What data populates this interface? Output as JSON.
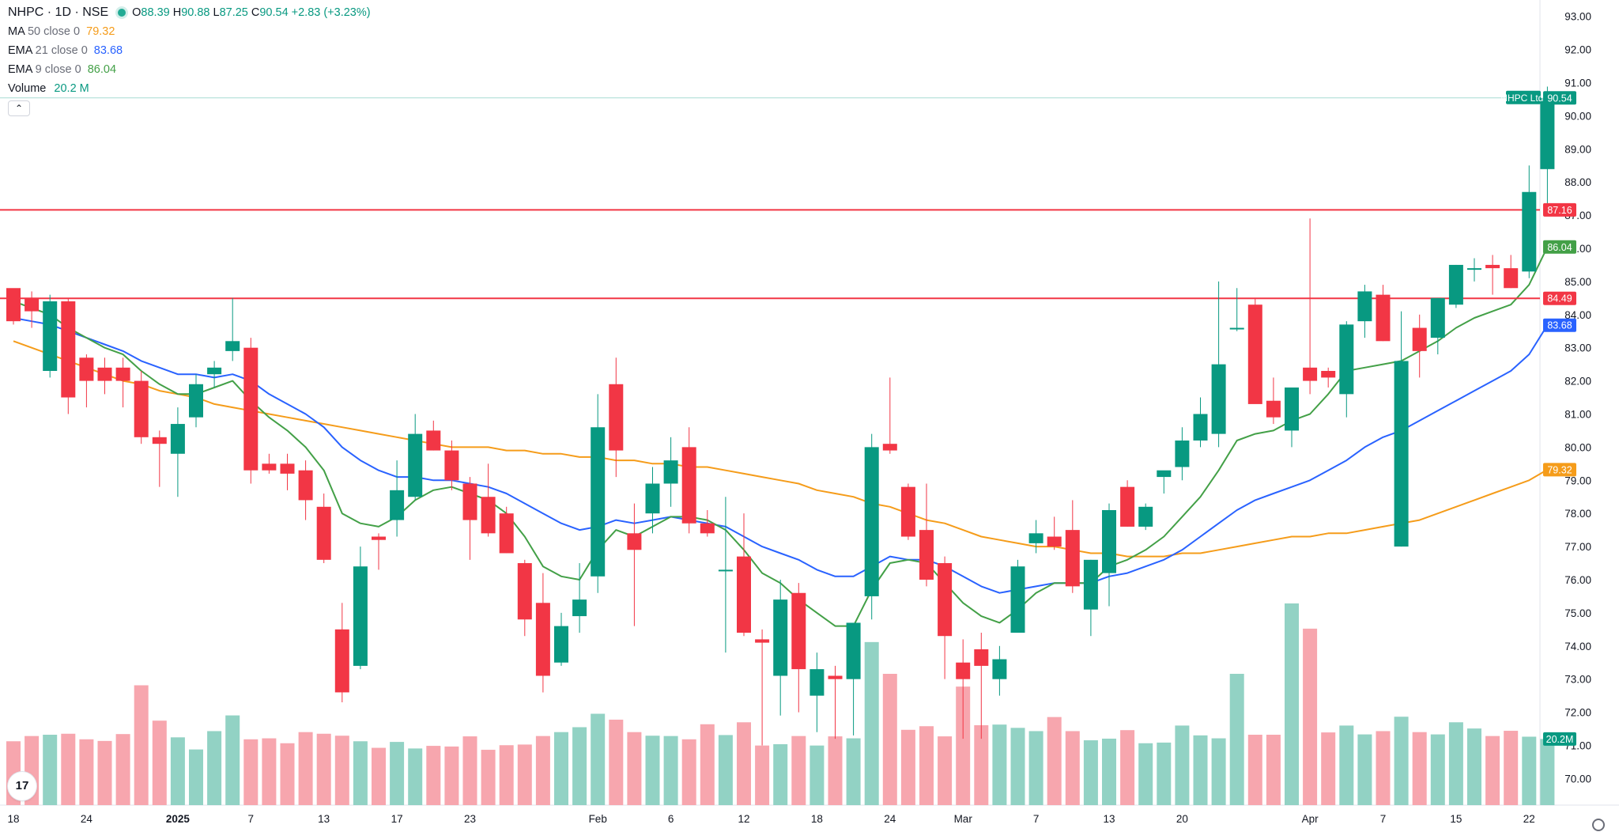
{
  "header": {
    "symbol": "NHPC · 1D · NSE",
    "open_label": "O",
    "open": "88.39",
    "high_label": "H",
    "high": "90.88",
    "low_label": "L",
    "low": "87.25",
    "close_label": "C",
    "close": "90.54",
    "change": "+2.83 (+3.23%)"
  },
  "indicators": [
    {
      "name": "MA",
      "params": "50 close 0",
      "value": "79.32",
      "color": "#f59c1a"
    },
    {
      "name": "EMA",
      "params": "21 close 0",
      "value": "83.68",
      "color": "#2962ff"
    },
    {
      "name": "EMA",
      "params": "9 close 0",
      "value": "86.04",
      "color": "#43a047"
    },
    {
      "name": "Volume",
      "params": "",
      "value": "20.2 M",
      "color": "#089981"
    }
  ],
  "logo_text": "17",
  "chart_data": {
    "type": "candlestick",
    "symbol_label": "NHPC Ltd.",
    "last_price": "90.54",
    "ylim": [
      69.3,
      93.2
    ],
    "y_ticks": [
      "70.00",
      "71.00",
      "72.00",
      "73.00",
      "74.00",
      "75.00",
      "76.00",
      "77.00",
      "78.00",
      "79.00",
      "80.00",
      "81.00",
      "82.00",
      "83.00",
      "84.00",
      "85.00",
      "86.00",
      "87.00",
      "88.00",
      "89.00",
      "90.00",
      "91.00",
      "92.00",
      "93.00"
    ],
    "x_ticks": [
      {
        "label": "18",
        "i": 0
      },
      {
        "label": "24",
        "i": 4
      },
      {
        "label": "2025",
        "i": 9
      },
      {
        "label": "7",
        "i": 13
      },
      {
        "label": "13",
        "i": 17
      },
      {
        "label": "17",
        "i": 21
      },
      {
        "label": "23",
        "i": 25
      },
      {
        "label": "Feb",
        "i": 32
      },
      {
        "label": "6",
        "i": 36
      },
      {
        "label": "12",
        "i": 40
      },
      {
        "label": "18",
        "i": 44
      },
      {
        "label": "24",
        "i": 48
      },
      {
        "label": "Mar",
        "i": 52
      },
      {
        "label": "7",
        "i": 56
      },
      {
        "label": "13",
        "i": 60
      },
      {
        "label": "20",
        "i": 64
      },
      {
        "label": "Apr",
        "i": 71
      },
      {
        "label": "7",
        "i": 75
      },
      {
        "label": "15",
        "i": 79
      },
      {
        "label": "22",
        "i": 83
      }
    ],
    "horizontal_lines": [
      {
        "value": 87.16,
        "label": "87.16",
        "color": "#f23645"
      },
      {
        "value": 84.49,
        "label": "84.49",
        "color": "#f23645"
      }
    ],
    "price_labels": [
      {
        "value": 86.04,
        "label": "86.04",
        "color": "#43a047"
      },
      {
        "value": 83.68,
        "label": "83.68",
        "color": "#2962ff"
      },
      {
        "value": 79.32,
        "label": "79.32",
        "color": "#f59c1a"
      }
    ],
    "volume_label": "20.2M",
    "colors": {
      "up": "#089981",
      "down": "#f23645",
      "vol_up": "#92d2c4",
      "vol_down": "#f7a6ae",
      "ma50": "#f59c1a",
      "ema21": "#2962ff",
      "ema9": "#43a047"
    },
    "candles": [
      [
        84.8,
        84.7,
        83.7,
        83.8
      ],
      [
        84.5,
        84.7,
        83.6,
        84.1
      ],
      [
        82.3,
        84.6,
        82.1,
        84.4
      ],
      [
        84.4,
        84.5,
        81.0,
        81.5
      ],
      [
        82.7,
        82.8,
        81.2,
        82.0
      ],
      [
        82.4,
        82.7,
        81.6,
        82.0
      ],
      [
        82.4,
        82.7,
        81.2,
        82.0
      ],
      [
        82.0,
        82.3,
        80.1,
        80.3
      ],
      [
        80.3,
        80.5,
        78.8,
        80.1
      ],
      [
        79.8,
        81.2,
        78.5,
        80.7
      ],
      [
        80.9,
        82.2,
        80.6,
        81.9
      ],
      [
        82.2,
        82.6,
        81.8,
        82.4
      ],
      [
        82.9,
        84.5,
        82.6,
        83.2
      ],
      [
        83.0,
        83.3,
        78.9,
        79.3
      ],
      [
        79.5,
        79.8,
        79.2,
        79.3
      ],
      [
        79.5,
        79.8,
        78.7,
        79.2
      ],
      [
        79.3,
        79.6,
        77.8,
        78.4
      ],
      [
        78.2,
        78.6,
        76.5,
        76.6
      ],
      [
        74.5,
        75.3,
        72.3,
        72.6
      ],
      [
        73.4,
        77.0,
        73.3,
        76.4
      ],
      [
        77.3,
        77.4,
        76.3,
        77.2
      ],
      [
        77.8,
        79.6,
        77.3,
        78.7
      ],
      [
        78.5,
        81.0,
        78.4,
        80.4
      ],
      [
        80.5,
        80.8,
        79.9,
        79.9
      ],
      [
        79.9,
        80.2,
        78.7,
        79.0
      ],
      [
        78.9,
        79.1,
        76.6,
        77.8
      ],
      [
        78.5,
        79.5,
        77.3,
        77.4
      ],
      [
        78.0,
        78.2,
        76.8,
        76.8
      ],
      [
        76.5,
        76.6,
        74.3,
        74.8
      ],
      [
        75.3,
        76.2,
        72.6,
        73.1
      ],
      [
        73.5,
        75.0,
        73.4,
        74.6
      ],
      [
        74.9,
        76.5,
        74.4,
        75.4
      ],
      [
        76.1,
        81.6,
        75.6,
        80.6
      ],
      [
        81.9,
        82.7,
        79.1,
        79.9
      ],
      [
        77.4,
        78.3,
        74.6,
        76.9
      ],
      [
        78.0,
        79.4,
        77.4,
        78.9
      ],
      [
        78.9,
        80.3,
        78.2,
        79.6
      ],
      [
        80.0,
        80.6,
        77.4,
        77.7
      ],
      [
        77.7,
        78.1,
        77.3,
        77.4
      ],
      [
        76.3,
        78.5,
        73.8,
        76.3
      ],
      [
        76.7,
        78.0,
        74.3,
        74.4
      ],
      [
        74.2,
        74.5,
        71.0,
        74.1
      ],
      [
        73.1,
        76.0,
        71.9,
        75.4
      ],
      [
        75.6,
        75.9,
        72.0,
        73.3
      ],
      [
        72.5,
        73.8,
        71.4,
        73.3
      ],
      [
        73.1,
        73.4,
        71.2,
        73.0
      ],
      [
        73.0,
        74.7,
        71.3,
        74.7
      ],
      [
        75.5,
        80.4,
        74.8,
        80.0
      ],
      [
        80.1,
        82.1,
        79.8,
        79.9
      ],
      [
        78.8,
        78.9,
        77.2,
        77.3
      ],
      [
        77.5,
        78.9,
        75.8,
        76.0
      ],
      [
        76.5,
        76.7,
        73.0,
        74.3
      ],
      [
        73.5,
        74.2,
        71.2,
        73.0
      ],
      [
        73.9,
        74.4,
        71.2,
        73.4
      ],
      [
        73.0,
        74.0,
        72.5,
        73.6
      ],
      [
        74.4,
        76.6,
        74.4,
        76.4
      ],
      [
        77.1,
        77.8,
        76.8,
        77.4
      ],
      [
        77.3,
        77.9,
        76.9,
        77.0
      ],
      [
        77.5,
        78.4,
        75.6,
        75.8
      ],
      [
        75.1,
        76.6,
        74.3,
        76.6
      ],
      [
        76.2,
        78.3,
        75.2,
        78.1
      ],
      [
        78.8,
        79.0,
        77.6,
        77.6
      ],
      [
        77.6,
        78.3,
        77.5,
        78.2
      ],
      [
        79.1,
        79.1,
        78.6,
        79.3
      ],
      [
        79.4,
        80.6,
        79.0,
        80.2
      ],
      [
        80.2,
        81.5,
        80.0,
        81.0
      ],
      [
        80.4,
        85.0,
        80.0,
        82.5
      ],
      [
        83.6,
        84.8,
        83.5,
        83.6
      ],
      [
        84.3,
        84.5,
        81.4,
        81.3
      ],
      [
        81.4,
        82.1,
        80.7,
        80.9
      ],
      [
        80.5,
        81.8,
        80.0,
        81.8
      ],
      [
        82.4,
        86.9,
        81.6,
        82.0
      ],
      [
        82.3,
        82.4,
        81.8,
        82.1
      ],
      [
        81.6,
        83.8,
        80.9,
        83.7
      ],
      [
        83.8,
        84.9,
        83.3,
        84.7
      ],
      [
        84.6,
        84.9,
        83.2,
        83.2
      ],
      [
        77.0,
        84.1,
        77.0,
        82.6
      ],
      [
        83.6,
        84.0,
        82.1,
        82.9
      ],
      [
        83.3,
        84.5,
        82.8,
        84.5
      ],
      [
        84.3,
        85.5,
        84.2,
        85.5
      ],
      [
        85.4,
        85.7,
        85.0,
        85.4
      ],
      [
        85.5,
        85.8,
        84.6,
        85.4
      ],
      [
        85.4,
        85.8,
        84.8,
        84.8
      ],
      [
        85.3,
        88.5,
        85.1,
        87.7
      ],
      [
        88.39,
        90.88,
        87.25,
        90.54
      ]
    ],
    "volumes": [
      19.5,
      21.1,
      21.5,
      21.8,
      20.1,
      19.6,
      21.7,
      36.6,
      25.8,
      20.7,
      17.0,
      22.6,
      27.4,
      20.1,
      20.4,
      18.9,
      22.3,
      21.8,
      21.2,
      19.5,
      17.5,
      19.3,
      17.3,
      18.1,
      17.9,
      21.0,
      16.9,
      18.3,
      18.5,
      21.1,
      22.3,
      23.8,
      27.9,
      26.1,
      22.3,
      21.2,
      21.1,
      20.1,
      24.7,
      21.4,
      25.3,
      18.2,
      18.6,
      21.1,
      18.2,
      21.0,
      20.4,
      49.8,
      40.1,
      23.0,
      24.1,
      21.0,
      36.2,
      24.4,
      24.6,
      23.6,
      22.6,
      26.9,
      22.6,
      19.8,
      20.3,
      22.9,
      18.9,
      19.1,
      24.3,
      21.3,
      20.4,
      40.1,
      21.5,
      21.5,
      61.6,
      53.9,
      22.2,
      24.3,
      21.6,
      22.6,
      27.0,
      22.3,
      21.6,
      25.3,
      23.4,
      21.1,
      22.7,
      20.9,
      20.2
    ],
    "ma50": [
      83.2,
      83.0,
      82.8,
      82.6,
      82.4,
      82.2,
      82.0,
      81.9,
      81.7,
      81.6,
      81.5,
      81.3,
      81.2,
      81.1,
      81.0,
      80.9,
      80.8,
      80.7,
      80.6,
      80.5,
      80.4,
      80.3,
      80.2,
      80.1,
      80.0,
      80.0,
      80.0,
      79.9,
      79.9,
      79.8,
      79.8,
      79.7,
      79.7,
      79.6,
      79.6,
      79.5,
      79.5,
      79.4,
      79.4,
      79.3,
      79.2,
      79.1,
      79.0,
      78.9,
      78.7,
      78.6,
      78.5,
      78.3,
      78.2,
      78.0,
      77.8,
      77.7,
      77.5,
      77.3,
      77.2,
      77.1,
      77.0,
      77.0,
      76.9,
      76.8,
      76.8,
      76.7,
      76.7,
      76.7,
      76.8,
      76.8,
      76.9,
      77.0,
      77.1,
      77.2,
      77.3,
      77.3,
      77.4,
      77.4,
      77.5,
      77.6,
      77.7,
      77.8,
      78.0,
      78.2,
      78.4,
      78.6,
      78.8,
      79.0,
      79.32
    ],
    "ema21": [
      83.9,
      83.8,
      83.7,
      83.5,
      83.3,
      83.1,
      82.9,
      82.6,
      82.4,
      82.2,
      82.2,
      82.1,
      82.2,
      82.0,
      81.6,
      81.3,
      81.0,
      80.6,
      80.0,
      79.6,
      79.3,
      79.1,
      79.1,
      79.0,
      79.0,
      78.9,
      78.8,
      78.6,
      78.3,
      78.0,
      77.7,
      77.5,
      77.6,
      77.8,
      77.7,
      77.8,
      77.9,
      77.8,
      77.7,
      77.6,
      77.3,
      77.0,
      76.8,
      76.6,
      76.3,
      76.1,
      76.1,
      76.4,
      76.7,
      76.6,
      76.6,
      76.4,
      76.1,
      75.8,
      75.6,
      75.7,
      75.8,
      75.9,
      75.9,
      75.9,
      76.1,
      76.2,
      76.4,
      76.6,
      76.9,
      77.3,
      77.7,
      78.1,
      78.4,
      78.6,
      78.8,
      79.0,
      79.3,
      79.6,
      80.0,
      80.3,
      80.5,
      80.8,
      81.1,
      81.4,
      81.7,
      82.0,
      82.3,
      82.8,
      83.68
    ],
    "ema9": [
      84.4,
      84.2,
      84.0,
      83.6,
      83.3,
      83.0,
      82.8,
      82.3,
      81.9,
      81.6,
      81.6,
      81.8,
      82.0,
      81.4,
      80.9,
      80.5,
      80.0,
      79.3,
      78.0,
      77.7,
      77.6,
      77.9,
      78.4,
      78.7,
      78.8,
      78.6,
      78.4,
      78.0,
      77.3,
      76.4,
      76.1,
      76.0,
      76.9,
      77.5,
      77.3,
      77.6,
      77.9,
      77.9,
      77.8,
      77.5,
      76.9,
      76.2,
      75.9,
      75.4,
      75.0,
      74.6,
      74.6,
      75.7,
      76.5,
      76.6,
      76.5,
      75.9,
      75.3,
      74.9,
      74.7,
      75.1,
      75.6,
      75.9,
      75.9,
      75.9,
      76.4,
      76.6,
      76.9,
      77.3,
      77.9,
      78.5,
      79.3,
      80.2,
      80.4,
      80.5,
      80.8,
      81.0,
      81.6,
      82.3,
      82.4,
      82.5,
      82.6,
      82.9,
      83.2,
      83.6,
      83.9,
      84.1,
      84.3,
      84.9,
      86.04
    ]
  }
}
